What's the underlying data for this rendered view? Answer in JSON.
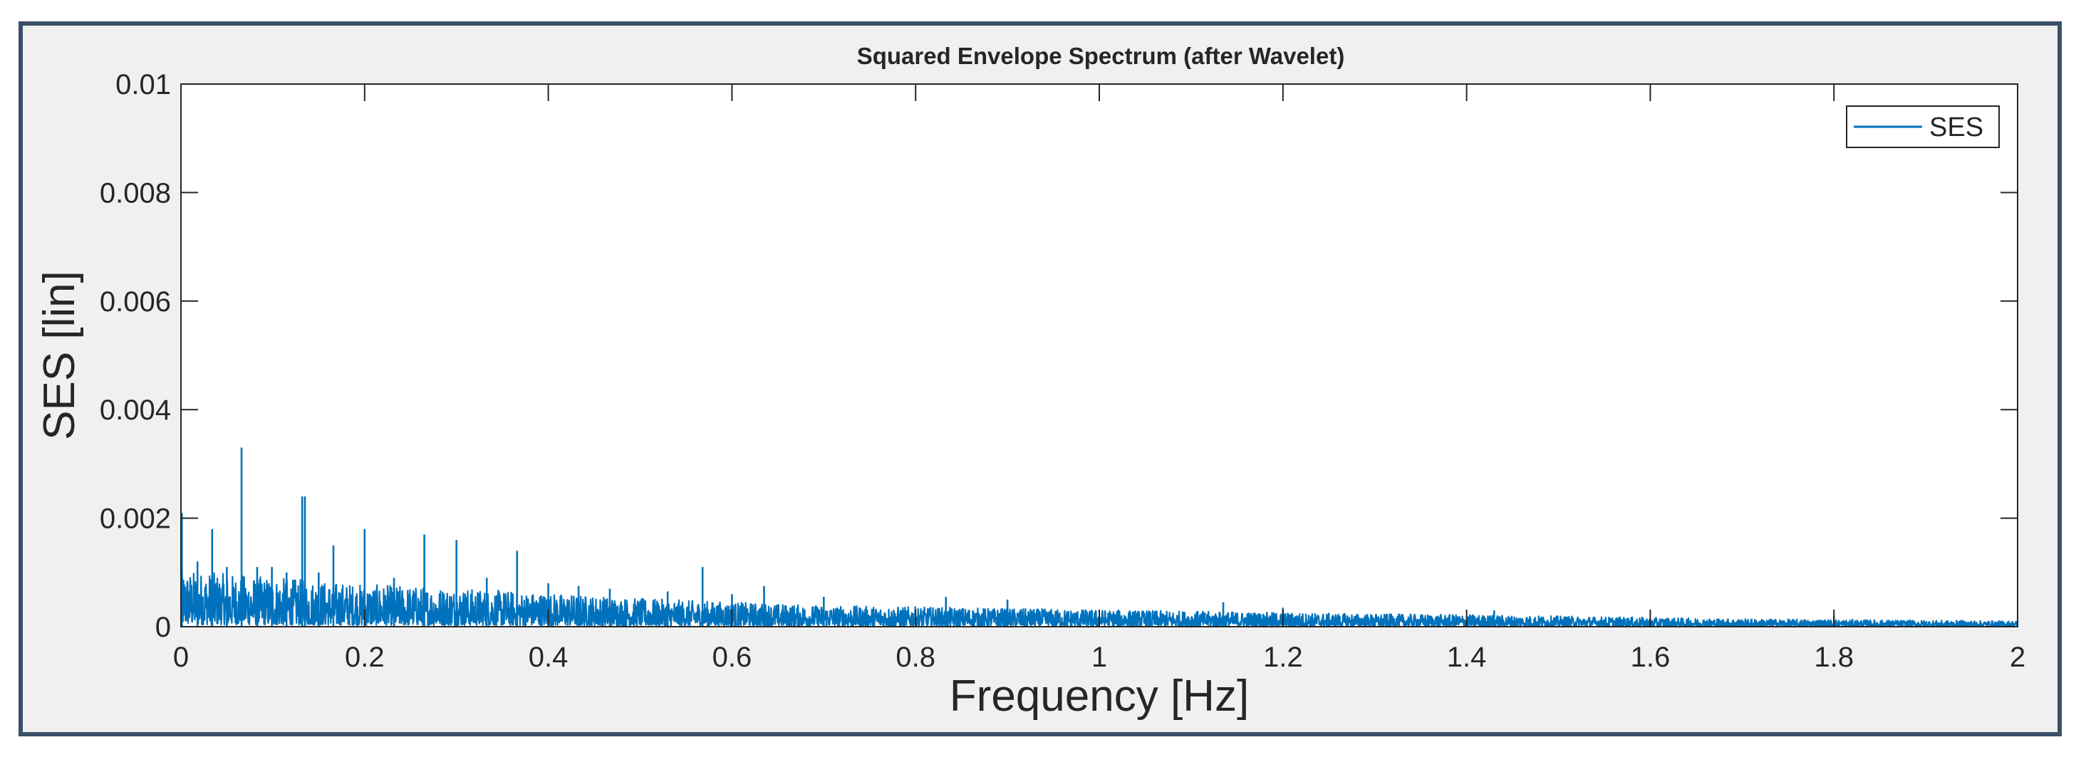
{
  "figure": {
    "background": "#f0f0f0",
    "border_color": "#3a5068"
  },
  "chart_data": {
    "type": "line",
    "title": "Squared Envelope Spectrum (after Wavelet)",
    "xlabel": "Frequency [Hz]",
    "ylabel": "SES [lin]",
    "xlim": [
      0,
      2
    ],
    "ylim": [
      0,
      0.01
    ],
    "xticks": [
      0,
      0.2,
      0.4,
      0.6,
      0.8,
      1,
      1.2,
      1.4,
      1.6,
      1.8,
      2
    ],
    "xtick_labels": [
      "0",
      "0.2",
      "0.4",
      "0.6",
      "0.8",
      "1",
      "1.2",
      "1.4",
      "1.6",
      "1.8",
      "2"
    ],
    "yticks": [
      0,
      0.002,
      0.004,
      0.006,
      0.008,
      0.01
    ],
    "ytick_labels": [
      "0",
      "0.002",
      "0.004",
      "0.006",
      "0.008",
      "0.01"
    ],
    "grid": false,
    "legend": {
      "position": "top-right",
      "entries": [
        "SES"
      ]
    },
    "series": [
      {
        "name": "SES",
        "color": "#0072bd",
        "noise_floor": [
          [
            0,
            0.0008
          ],
          [
            0.1,
            0.0007
          ],
          [
            0.2,
            0.0006
          ],
          [
            0.3,
            0.00055
          ],
          [
            0.4,
            0.00048
          ],
          [
            0.5,
            0.0004
          ],
          [
            0.6,
            0.00035
          ],
          [
            0.7,
            0.0003
          ],
          [
            0.8,
            0.00028
          ],
          [
            0.9,
            0.00026
          ],
          [
            1.0,
            0.00024
          ],
          [
            1.1,
            0.00022
          ],
          [
            1.2,
            0.0002
          ],
          [
            1.3,
            0.00018
          ],
          [
            1.4,
            0.00017
          ],
          [
            1.5,
            0.00015
          ],
          [
            1.6,
            0.00013
          ],
          [
            1.7,
            0.00011
          ],
          [
            1.8,
            0.0001
          ],
          [
            1.9,
            9e-05
          ],
          [
            2.0,
            8e-05
          ]
        ],
        "peaks": [
          [
            0.001,
            0.0021
          ],
          [
            0.018,
            0.0012
          ],
          [
            0.034,
            0.0018
          ],
          [
            0.05,
            0.0011
          ],
          [
            0.066,
            0.0033
          ],
          [
            0.083,
            0.0011
          ],
          [
            0.099,
            0.0011
          ],
          [
            0.115,
            0.001
          ],
          [
            0.132,
            0.0024
          ],
          [
            0.135,
            0.0024
          ],
          [
            0.15,
            0.001
          ],
          [
            0.166,
            0.0015
          ],
          [
            0.2,
            0.0018
          ],
          [
            0.232,
            0.0009
          ],
          [
            0.265,
            0.0017
          ],
          [
            0.3,
            0.0016
          ],
          [
            0.333,
            0.0009
          ],
          [
            0.366,
            0.0014
          ],
          [
            0.4,
            0.0008
          ],
          [
            0.433,
            0.00075
          ],
          [
            0.467,
            0.0007
          ],
          [
            0.53,
            0.00065
          ],
          [
            0.568,
            0.0011
          ],
          [
            0.6,
            0.0006
          ],
          [
            0.635,
            0.00075
          ],
          [
            0.7,
            0.00055
          ],
          [
            0.833,
            0.00055
          ],
          [
            0.9,
            0.0005
          ],
          [
            1.135,
            0.00045
          ],
          [
            1.2,
            0.00035
          ],
          [
            1.43,
            0.0003
          ],
          [
            1.8,
            0.0002
          ]
        ]
      }
    ]
  }
}
